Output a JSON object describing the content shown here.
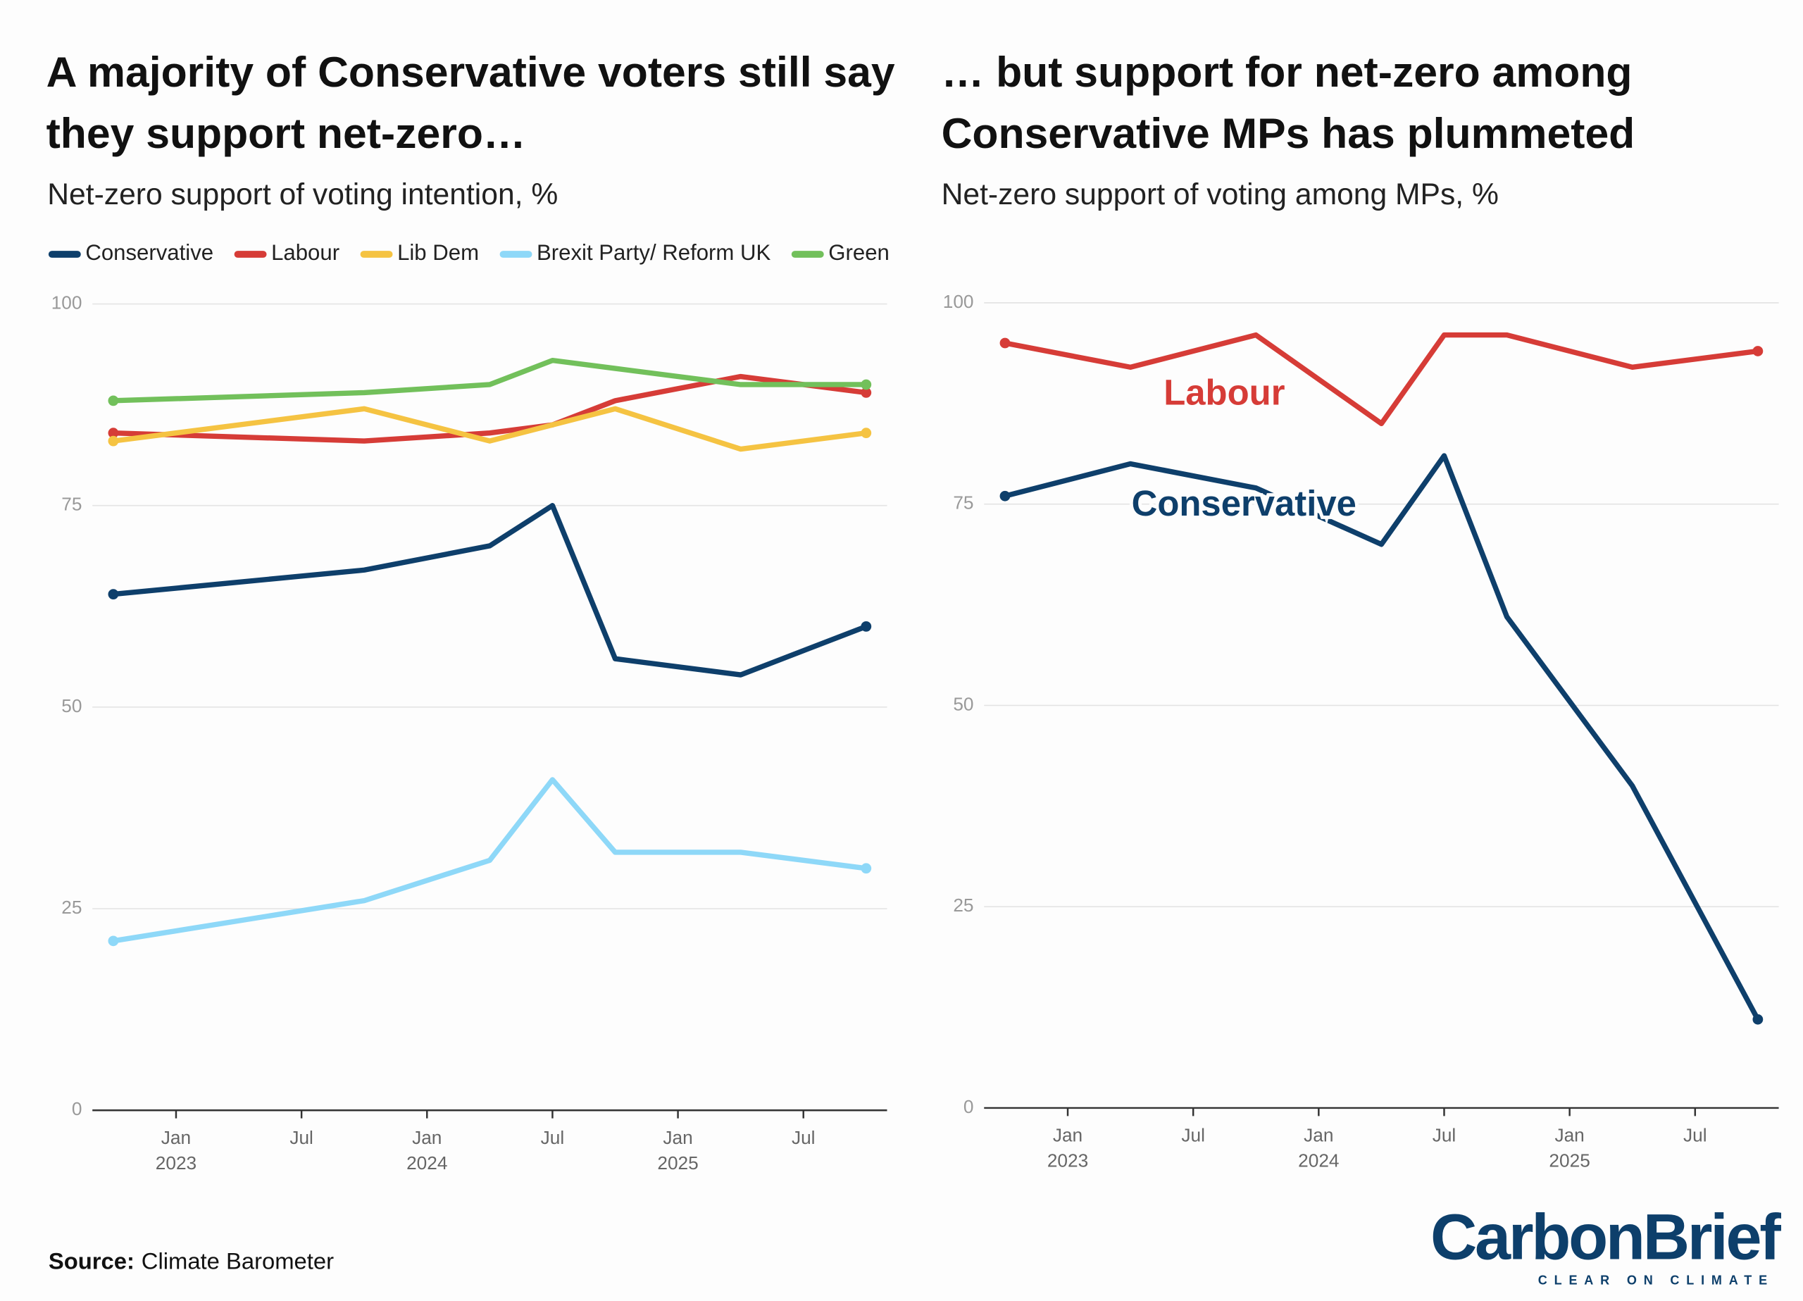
{
  "chart_data": [
    {
      "type": "line",
      "title": "A majority of Conservative voters still say they support net-zero…",
      "subtitle": "Net-zero support of voting intention, %",
      "x": [
        "2022-10",
        "2023-10",
        "2024-04",
        "2024-07",
        "2024-10",
        "2025-04",
        "2025-10"
      ],
      "series": [
        {
          "name": "Conservative",
          "color": "#0e3f6b",
          "values": [
            64,
            67,
            70,
            75,
            56,
            54,
            60
          ]
        },
        {
          "name": "Labour",
          "color": "#d63c37",
          "values": [
            84,
            83,
            84,
            85,
            88,
            91,
            89
          ]
        },
        {
          "name": "Lib Dem",
          "color": "#f5c342",
          "values": [
            83,
            87,
            83,
            85,
            87,
            82,
            84
          ]
        },
        {
          "name": "Brexit Party/ Reform UK",
          "color": "#8ed8f8",
          "values": [
            21,
            26,
            31,
            41,
            32,
            32,
            30
          ]
        },
        {
          "name": "Green",
          "color": "#72c05b",
          "values": [
            88,
            89,
            90,
            93,
            92,
            90,
            90
          ]
        }
      ],
      "xlim": [
        "2022-09",
        "2025-11"
      ],
      "xticks": [
        {
          "value": "2023-01",
          "label": "Jan 2023"
        },
        {
          "value": "2023-07",
          "label": "Jul"
        },
        {
          "value": "2024-01",
          "label": "Jan 2024"
        },
        {
          "value": "2024-07",
          "label": "Jul"
        },
        {
          "value": "2025-01",
          "label": "Jan 2025"
        },
        {
          "value": "2025-07",
          "label": "Jul"
        }
      ],
      "ylim": [
        0,
        100
      ],
      "yticks": [
        0,
        25,
        50,
        75,
        100
      ],
      "grid": true,
      "legend": "top",
      "series_labels": false
    },
    {
      "type": "line",
      "title": "… but support for net-zero among Conservative MPs has plummeted",
      "subtitle": "Net-zero support of voting among MPs, %",
      "x": [
        "2022-10",
        "2023-04",
        "2023-10",
        "2024-04",
        "2024-07",
        "2024-10",
        "2025-04",
        "2025-10"
      ],
      "series": [
        {
          "name": "Labour",
          "color": "#d63c37",
          "values": [
            95,
            92,
            96,
            85,
            96,
            96,
            92,
            94
          ]
        },
        {
          "name": "Conservative",
          "color": "#0e3f6b",
          "values": [
            76,
            80,
            77,
            70,
            81,
            61,
            40,
            11
          ]
        }
      ],
      "xlim": [
        "2022-09",
        "2025-11"
      ],
      "xticks": [
        {
          "value": "2023-01",
          "label": "Jan 2023"
        },
        {
          "value": "2023-07",
          "label": "Jul"
        },
        {
          "value": "2024-01",
          "label": "Jan 2024"
        },
        {
          "value": "2024-07",
          "label": "Jul"
        },
        {
          "value": "2025-01",
          "label": "Jan 2025"
        },
        {
          "value": "2025-07",
          "label": "Jul"
        }
      ],
      "ylim": [
        0,
        100
      ],
      "yticks": [
        0,
        25,
        50,
        75,
        100
      ],
      "grid": true,
      "legend": "none",
      "series_labels": true
    }
  ],
  "source_label": "Source:",
  "source": "Climate Barometer",
  "logo": {
    "name": "CarbonBrief",
    "tagline": "CLEAR ON CLIMATE"
  }
}
